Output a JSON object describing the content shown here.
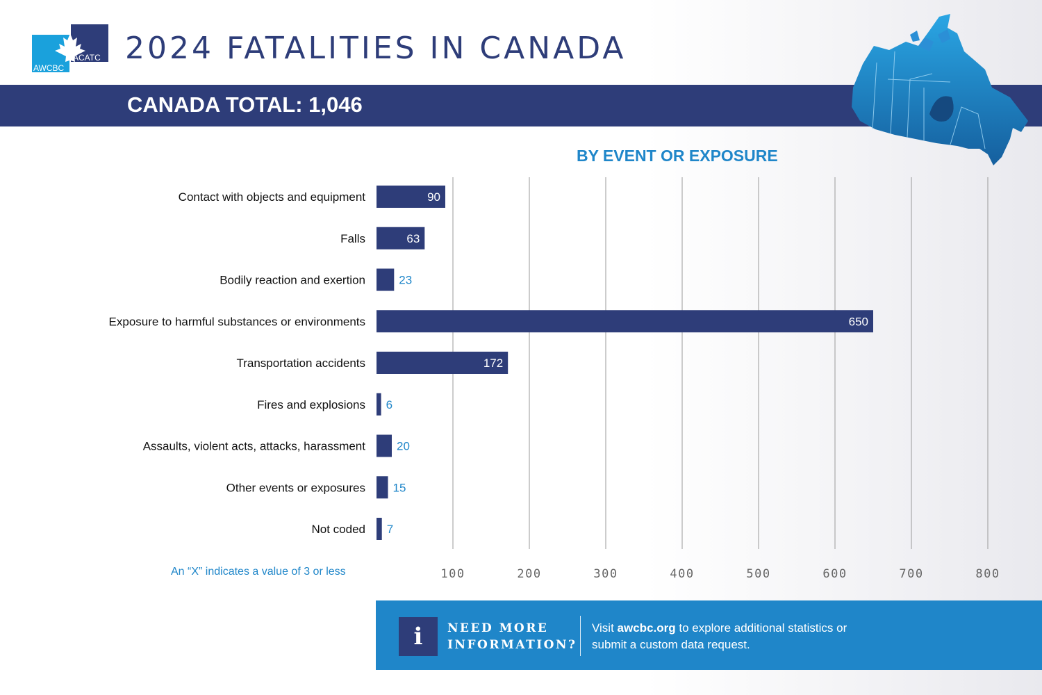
{
  "header": {
    "logo_text_left": "AWCBC",
    "logo_text_right": "ACATC",
    "title": "2024 FATALITIES IN CANADA",
    "total_label": "CANADA TOTAL: 1,046"
  },
  "colors": {
    "navy": "#2e3d79",
    "accent_blue": "#1f86c9",
    "grid": "#9a9a9a"
  },
  "footnote": "An “X” indicates a value of 3 or less",
  "info": {
    "icon": "info-icon",
    "icon_glyph": "i",
    "heading": "NEED MORE INFORMATION?",
    "text_pre": "Visit ",
    "link_text": "awcbc.org",
    "text_post": " to explore additional statistics or submit a custom data request."
  },
  "chart_data": {
    "type": "bar",
    "orientation": "horizontal",
    "title": "BY EVENT OR EXPOSURE",
    "categories": [
      "Contact with objects and equipment",
      "Falls",
      "Bodily reaction and exertion",
      "Exposure to harmful substances or environments",
      "Transportation accidents",
      "Fires and explosions",
      "Assaults, violent acts, attacks, harassment",
      "Other events or exposures",
      "Not coded"
    ],
    "values": [
      90,
      63,
      23,
      650,
      172,
      6,
      20,
      15,
      7
    ],
    "xlim": [
      0,
      800
    ],
    "xticks": [
      100,
      200,
      300,
      400,
      500,
      600,
      700,
      800
    ],
    "grid": "vertical",
    "legend": "none"
  }
}
